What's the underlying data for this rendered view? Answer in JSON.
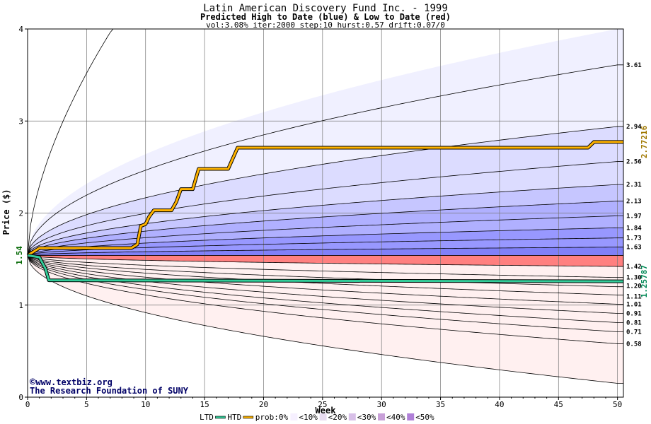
{
  "chart_data": {
    "type": "area",
    "title": "Latin American Discovery Fund Inc. - 1999",
    "subtitle": "Predicted High to Date (blue) &  Low to Date (red)",
    "params": "vol:3.08% iter:2000 step:10 hurst:0.57 drift:0.07/0",
    "xlabel": "Week",
    "ylabel": "Price ($)",
    "xlim": [
      0,
      50.5
    ],
    "ylim": [
      0,
      4
    ],
    "xticks": [
      "0",
      "5",
      "10",
      "15",
      "20",
      "25",
      "30",
      "35",
      "40",
      "45",
      "50"
    ],
    "yticks": [
      "0",
      "1",
      "2",
      "3",
      "4"
    ],
    "grid": true,
    "start_price": 1.54,
    "start_label": "1.54",
    "percentile_levels_at_week_50": [
      3.61,
      2.94,
      2.56,
      2.31,
      2.13,
      1.97,
      1.84,
      1.73,
      1.63,
      1.42,
      1.3,
      1.2,
      1.11,
      1.01,
      0.91,
      0.81,
      0.71,
      0.58
    ],
    "right_labels": [
      "3.61",
      "2.94",
      "2.56",
      "2.31",
      "2.13",
      "1.97",
      "1.84",
      "1.73",
      "1.63",
      "1.42",
      "1.30",
      "1.20",
      "1.11",
      "1.01",
      "0.91",
      "0.81",
      "0.71",
      "0.58"
    ],
    "outer_upper_final": 4.0,
    "outer_lower_final": 0.15,
    "median": 1.54,
    "htd": {
      "name": "HTD",
      "final_label": "2.77216",
      "points": [
        [
          0,
          1.54
        ],
        [
          1,
          1.62
        ],
        [
          8.8,
          1.62
        ],
        [
          9.3,
          1.66
        ],
        [
          9.6,
          1.86
        ],
        [
          10,
          1.88
        ],
        [
          10.3,
          1.96
        ],
        [
          10.7,
          2.03
        ],
        [
          12.2,
          2.03
        ],
        [
          12.6,
          2.12
        ],
        [
          13.0,
          2.26
        ],
        [
          14.0,
          2.26
        ],
        [
          14.5,
          2.48
        ],
        [
          17.0,
          2.48
        ],
        [
          17.8,
          2.71
        ],
        [
          47.5,
          2.71
        ],
        [
          48.0,
          2.77216
        ],
        [
          50.5,
          2.77216
        ]
      ]
    },
    "ltd": {
      "name": "LTD",
      "final_label": "1.25787",
      "points": [
        [
          0,
          1.54
        ],
        [
          1.0,
          1.52
        ],
        [
          1.5,
          1.4
        ],
        [
          1.8,
          1.27
        ],
        [
          50.5,
          1.25787
        ]
      ]
    },
    "legend": {
      "ltd": "LTD",
      "htd": "HTD",
      "prob": "prob:0%",
      "bands": [
        "<10%",
        "<20%",
        "<30%",
        "<40%",
        "<50%"
      ]
    },
    "colors": {
      "htd": "#ffb300",
      "ltd": "#33cc99",
      "blue_bands": [
        "#f0f0ff",
        "#dcdcff",
        "#c6c6ff",
        "#b0b0ff",
        "#9898ff",
        "#8080f8"
      ],
      "red_bands": [
        "#fff0f0",
        "#ffdcdc",
        "#ffc6c6",
        "#ffb0b0",
        "#ff9898",
        "#ff8080"
      ]
    }
  },
  "credits": {
    "copyright_symbol": "©",
    "site": "www.textbiz.org",
    "org": "The Research Foundation of SUNY"
  }
}
